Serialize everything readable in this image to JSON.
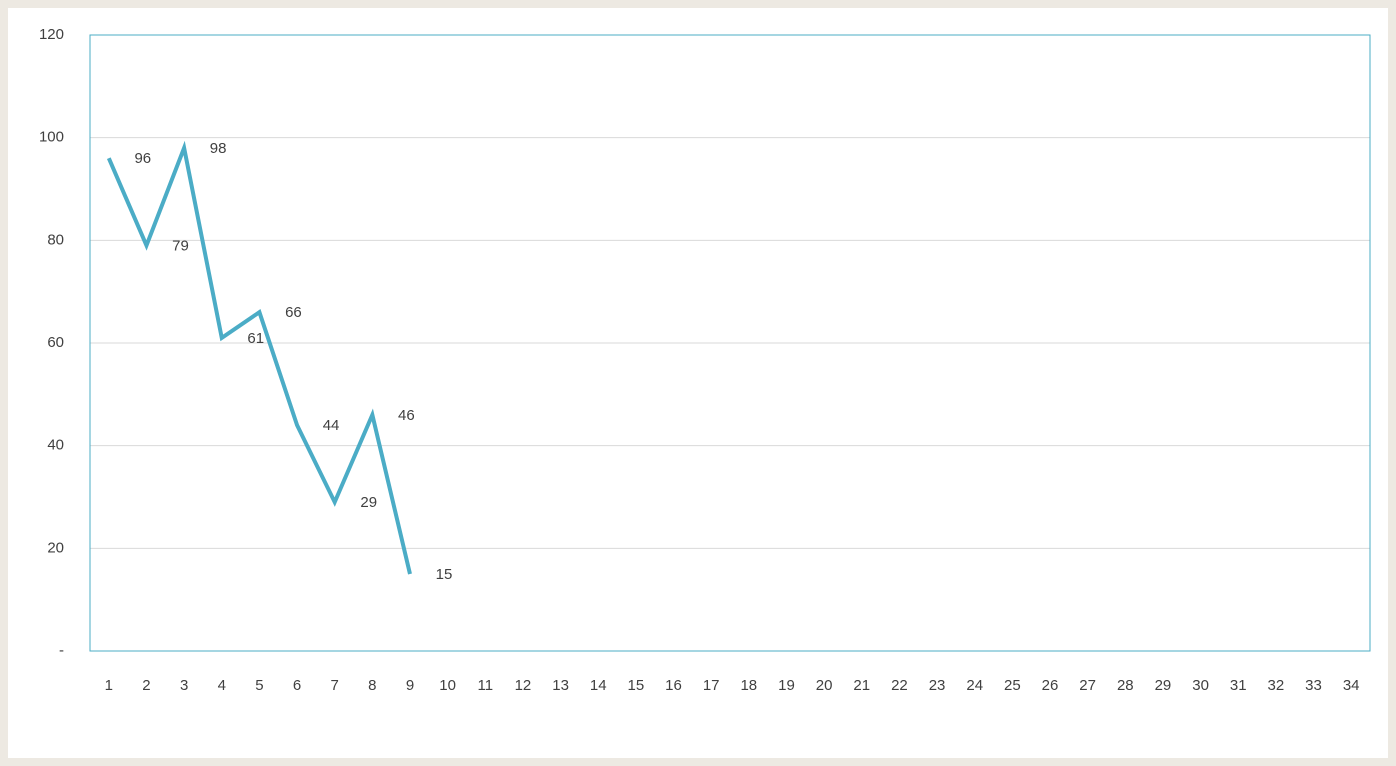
{
  "chart_data": {
    "type": "line",
    "categories": [
      "1",
      "2",
      "3",
      "4",
      "5",
      "6",
      "7",
      "8",
      "9",
      "10",
      "11",
      "12",
      "13",
      "14",
      "15",
      "16",
      "17",
      "18",
      "19",
      "20",
      "21",
      "22",
      "23",
      "24",
      "25",
      "26",
      "27",
      "28",
      "29",
      "30",
      "31",
      "32",
      "33",
      "34"
    ],
    "values": [
      96,
      79,
      98,
      61,
      66,
      44,
      29,
      46,
      15,
      null,
      null,
      null,
      null,
      null,
      null,
      null,
      null,
      null,
      null,
      null,
      null,
      null,
      null,
      null,
      null,
      null,
      null,
      null,
      null,
      null,
      null,
      null,
      null,
      null
    ],
    "color": "#4bacc6",
    "ylim": [
      0,
      120
    ],
    "yticks": [
      {
        "value": 0,
        "label": "-"
      },
      20,
      40,
      60,
      80,
      100,
      120
    ],
    "grid": true,
    "data_labels": true
  }
}
